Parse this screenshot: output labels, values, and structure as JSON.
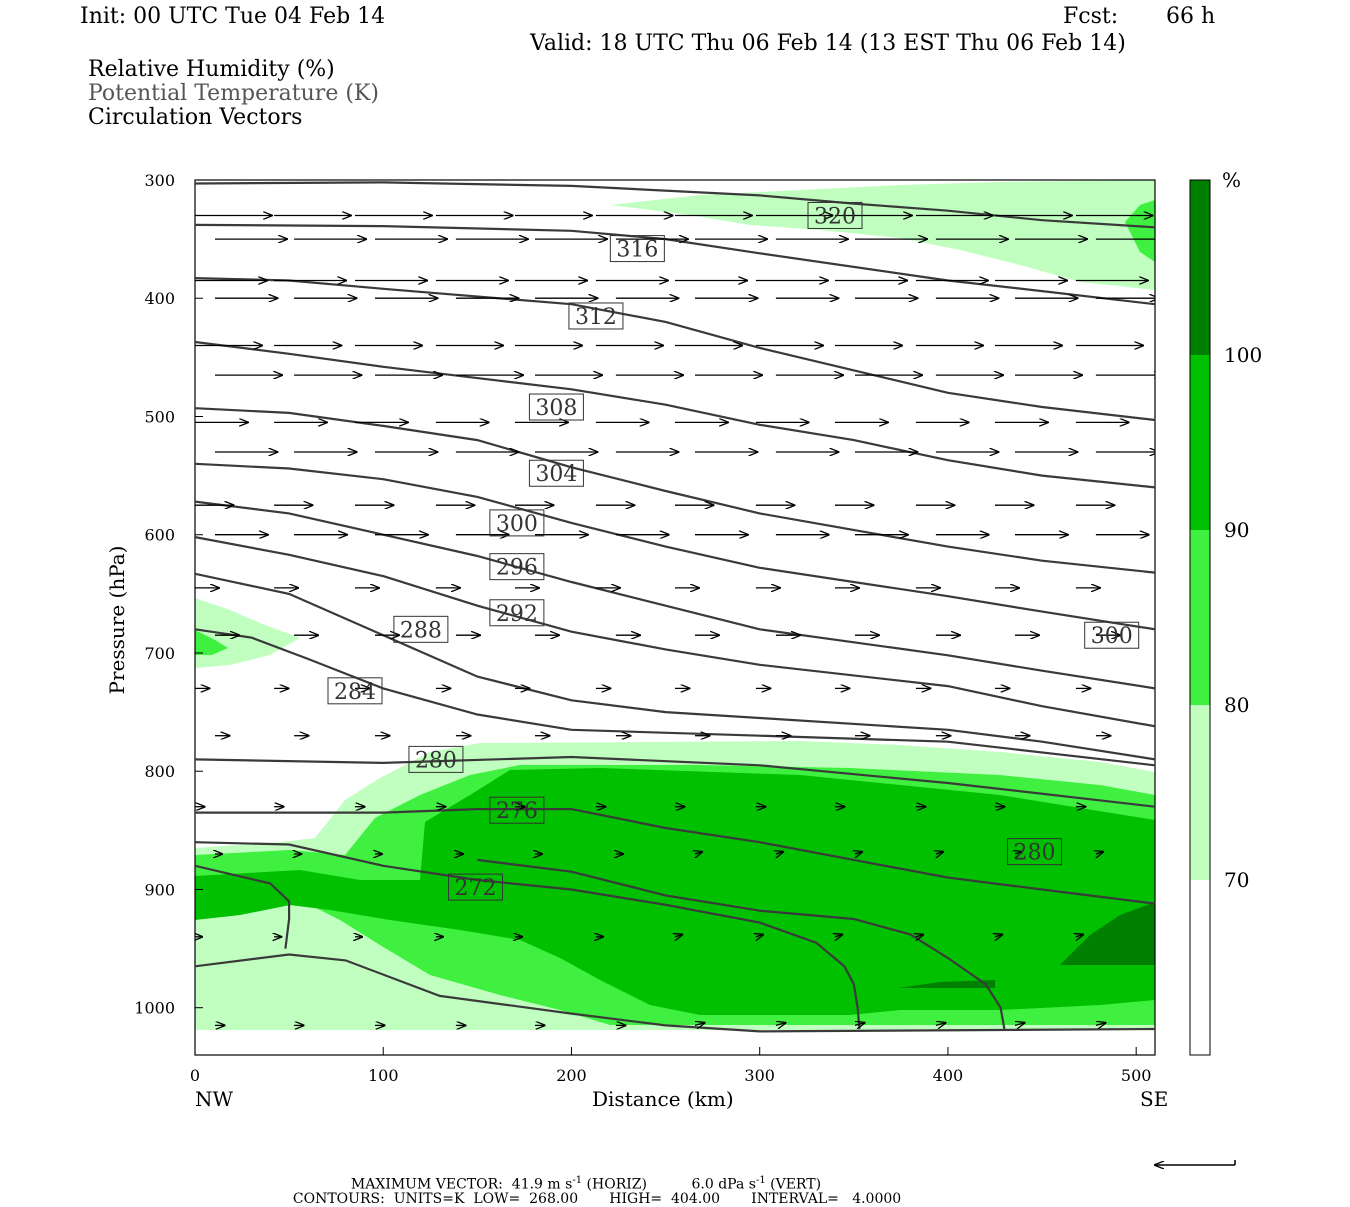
{
  "header": {
    "init": "Init: 00 UTC Tue 04 Feb 14",
    "fcst_label": "Fcst:",
    "fcst_value": "66 h",
    "valid": "Valid: 18 UTC Thu 06 Feb 14 (13 EST Thu 06 Feb 14)"
  },
  "legend": {
    "rh": "Relative Humidity (%)",
    "theta": "Potential Temperature (K)",
    "vectors": "Circulation Vectors"
  },
  "colorbar": {
    "unit": "%",
    "levels": [
      70,
      80,
      90,
      100
    ],
    "colors": [
      "#ffffff",
      "#c0ffc0",
      "#40f040",
      "#00c000",
      "#008000"
    ]
  },
  "chart_data": {
    "type": "cross-section",
    "xlabel": "Distance (km)",
    "ylabel": "Pressure (hPa)",
    "x_ticks": [
      0,
      100,
      200,
      300,
      400,
      500
    ],
    "y_ticks": [
      300,
      400,
      500,
      600,
      700,
      800,
      900,
      1000
    ],
    "xlim": [
      0,
      510
    ],
    "ylim": [
      1040,
      300
    ],
    "left_end_label": "NW",
    "right_end_label": "SE",
    "theta_contours": [
      {
        "value": 320,
        "points": [
          [
            0,
            303
          ],
          [
            100,
            302
          ],
          [
            200,
            305
          ],
          [
            300,
            313
          ],
          [
            350,
            320
          ],
          [
            400,
            326
          ],
          [
            450,
            334
          ],
          [
            510,
            340
          ]
        ]
      },
      {
        "value": 316,
        "points": [
          [
            0,
            338
          ],
          [
            100,
            339
          ],
          [
            200,
            343
          ],
          [
            250,
            350
          ],
          [
            300,
            362
          ],
          [
            400,
            385
          ],
          [
            450,
            394
          ],
          [
            510,
            405
          ]
        ]
      },
      {
        "value": 312,
        "points": [
          [
            0,
            383
          ],
          [
            50,
            385
          ],
          [
            100,
            392
          ],
          [
            200,
            405
          ],
          [
            250,
            420
          ],
          [
            300,
            442
          ],
          [
            400,
            480
          ],
          [
            450,
            492
          ],
          [
            510,
            503
          ]
        ]
      },
      {
        "value": 308,
        "points": [
          [
            0,
            437
          ],
          [
            50,
            447
          ],
          [
            100,
            458
          ],
          [
            200,
            477
          ],
          [
            250,
            490
          ],
          [
            300,
            507
          ],
          [
            350,
            520
          ],
          [
            400,
            537
          ],
          [
            450,
            550
          ],
          [
            510,
            560
          ]
        ]
      },
      {
        "value": 304,
        "points": [
          [
            0,
            493
          ],
          [
            50,
            497
          ],
          [
            100,
            508
          ],
          [
            150,
            520
          ],
          [
            200,
            543
          ],
          [
            250,
            563
          ],
          [
            300,
            582
          ],
          [
            400,
            610
          ],
          [
            450,
            622
          ],
          [
            510,
            632
          ]
        ]
      },
      {
        "value": 300,
        "points": [
          [
            0,
            540
          ],
          [
            50,
            544
          ],
          [
            100,
            553
          ],
          [
            150,
            568
          ],
          [
            200,
            590
          ],
          [
            250,
            610
          ],
          [
            300,
            628
          ],
          [
            400,
            652
          ],
          [
            450,
            665
          ],
          [
            510,
            680
          ]
        ]
      },
      {
        "value": 296,
        "points": [
          [
            0,
            572
          ],
          [
            50,
            582
          ],
          [
            100,
            600
          ],
          [
            150,
            618
          ],
          [
            200,
            640
          ],
          [
            250,
            660
          ],
          [
            300,
            680
          ],
          [
            400,
            702
          ],
          [
            450,
            715
          ],
          [
            510,
            730
          ]
        ]
      },
      {
        "value": 292,
        "points": [
          [
            0,
            602
          ],
          [
            50,
            617
          ],
          [
            100,
            635
          ],
          [
            150,
            660
          ],
          [
            200,
            682
          ],
          [
            250,
            697
          ],
          [
            300,
            710
          ],
          [
            400,
            728
          ],
          [
            450,
            745
          ],
          [
            510,
            762
          ]
        ]
      },
      {
        "value": 288,
        "points": [
          [
            0,
            633
          ],
          [
            50,
            650
          ],
          [
            100,
            685
          ],
          [
            150,
            720
          ],
          [
            200,
            740
          ],
          [
            250,
            750
          ],
          [
            300,
            755
          ],
          [
            400,
            765
          ],
          [
            450,
            775
          ],
          [
            510,
            790
          ]
        ]
      },
      {
        "value": 284,
        "points": [
          [
            0,
            680
          ],
          [
            30,
            687
          ],
          [
            60,
            705
          ],
          [
            100,
            730
          ],
          [
            150,
            752
          ],
          [
            200,
            765
          ],
          [
            300,
            770
          ],
          [
            400,
            775
          ],
          [
            510,
            795
          ]
        ]
      },
      {
        "value": 280,
        "points": [
          [
            0,
            790
          ],
          [
            100,
            793
          ],
          [
            200,
            788
          ],
          [
            300,
            795
          ],
          [
            400,
            810
          ],
          [
            510,
            830
          ]
        ]
      },
      {
        "value": 280,
        "points": [
          [
            0,
            835
          ],
          [
            100,
            835
          ],
          [
            150,
            832
          ],
          [
            200,
            832
          ],
          [
            250,
            848
          ],
          [
            300,
            860
          ],
          [
            350,
            875
          ],
          [
            400,
            890
          ],
          [
            450,
            900
          ],
          [
            510,
            912
          ]
        ]
      },
      {
        "value": 276,
        "points": [
          [
            0,
            860
          ],
          [
            50,
            862
          ],
          [
            100,
            880
          ],
          [
            150,
            892
          ],
          [
            200,
            900
          ],
          [
            250,
            913
          ],
          [
            300,
            928
          ],
          [
            330,
            945
          ],
          [
            345,
            965
          ],
          [
            350,
            980
          ],
          [
            352,
            1000
          ],
          [
            353,
            1018
          ]
        ]
      },
      {
        "value": 272,
        "points": [
          [
            0,
            880
          ],
          [
            40,
            895
          ],
          [
            50,
            910
          ],
          [
            50,
            925
          ],
          [
            48,
            950
          ]
        ]
      },
      {
        "value": 272,
        "points": [
          [
            150,
            875
          ],
          [
            200,
            885
          ],
          [
            250,
            905
          ],
          [
            300,
            918
          ],
          [
            350,
            925
          ],
          [
            380,
            938
          ],
          [
            400,
            958
          ],
          [
            420,
            980
          ],
          [
            428,
            1000
          ],
          [
            430,
            1018
          ]
        ]
      },
      {
        "value": 268,
        "points": [
          [
            0,
            965
          ],
          [
            50,
            955
          ],
          [
            80,
            960
          ],
          [
            130,
            990
          ],
          [
            200,
            1005
          ],
          [
            250,
            1015
          ],
          [
            300,
            1020
          ],
          [
            510,
            1018
          ]
        ]
      }
    ],
    "theta_labels": [
      {
        "value": 320,
        "x": 340,
        "p": 330
      },
      {
        "value": 316,
        "x": 235,
        "p": 358
      },
      {
        "value": 312,
        "x": 213,
        "p": 415
      },
      {
        "value": 308,
        "x": 192,
        "p": 492
      },
      {
        "value": 304,
        "x": 192,
        "p": 548
      },
      {
        "value": 300,
        "x": 171,
        "p": 590
      },
      {
        "value": 296,
        "x": 171,
        "p": 627
      },
      {
        "value": 292,
        "x": 171,
        "p": 666
      },
      {
        "value": 288,
        "x": 120,
        "p": 680
      },
      {
        "value": 284,
        "x": 85,
        "p": 732
      },
      {
        "value": 280,
        "x": 128,
        "p": 790
      },
      {
        "value": 276,
        "x": 171,
        "p": 833
      },
      {
        "value": 272,
        "x": 149,
        "p": 898
      },
      {
        "value": 280,
        "x": 446,
        "p": 868
      },
      {
        "value": 300,
        "x": 487,
        "p": 685
      }
    ],
    "vector_rows": [
      {
        "p": 330,
        "len": 32
      },
      {
        "p": 350,
        "len": 30
      },
      {
        "p": 385,
        "len": 30
      },
      {
        "p": 400,
        "len": 26
      },
      {
        "p": 440,
        "len": 28
      },
      {
        "p": 465,
        "len": 28
      },
      {
        "p": 505,
        "len": 22
      },
      {
        "p": 530,
        "len": 26
      },
      {
        "p": 575,
        "len": 16
      },
      {
        "p": 600,
        "len": 22
      },
      {
        "p": 645,
        "len": 10
      },
      {
        "p": 685,
        "len": 10
      },
      {
        "p": 730,
        "len": 6
      },
      {
        "p": 770,
        "len": 6
      },
      {
        "p": 830,
        "len": 4
      },
      {
        "p": 870,
        "len": 3
      },
      {
        "p": 940,
        "len": 3
      },
      {
        "p": 1015,
        "len": 4
      }
    ],
    "footer": {
      "max_vector_prefix": "MAXIMUM VECTOR:",
      "max_horiz_value": "41.9",
      "max_horiz_unit": "m s",
      "max_horiz_tail": "(HORIZ)",
      "max_vert_value": "6.0",
      "max_vert_unit": "dPa s",
      "max_vert_tail": "(VERT)",
      "exponent": "-1",
      "contours_label": "CONTOURS:",
      "units": "UNITS=K",
      "low": "LOW=  268.00",
      "high": "HIGH=  404.00",
      "interval": "INTERVAL=   4.0000"
    }
  }
}
